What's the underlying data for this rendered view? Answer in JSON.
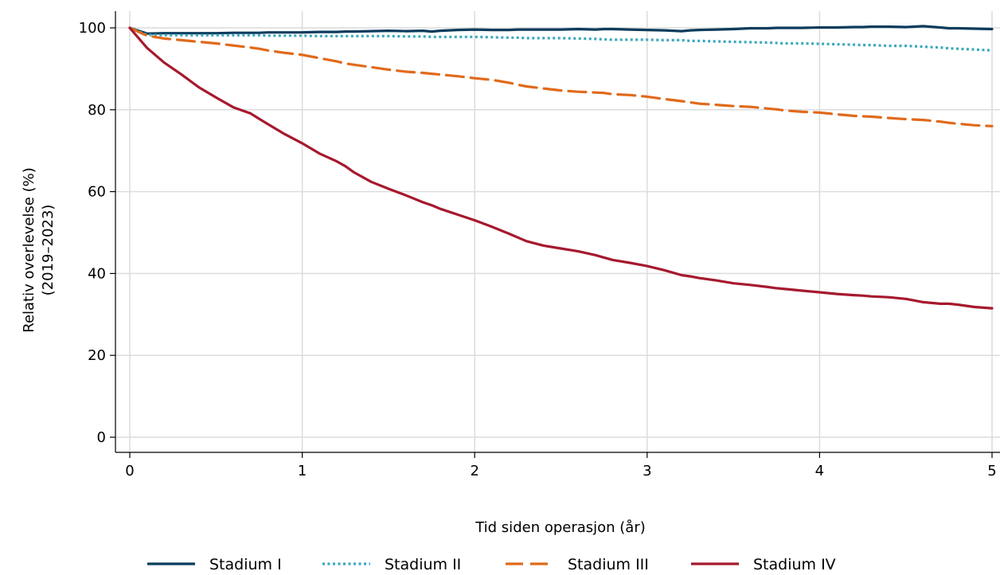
{
  "chart_data": {
    "type": "line",
    "title": "",
    "xlabel": "Tid siden operasjon (år)",
    "ylabel_lines": [
      "Relativ overlevelse (%)",
      "(2019–2023)"
    ],
    "xlim": [
      0,
      5
    ],
    "ylim": [
      0,
      100
    ],
    "x_ticks": [
      0,
      1,
      2,
      3,
      4,
      5
    ],
    "y_ticks": [
      0,
      20,
      40,
      60,
      80,
      100
    ],
    "grid": true,
    "legend_position": "bottom",
    "x": [
      0,
      0.1,
      0.2,
      0.3,
      0.4,
      0.5,
      0.6,
      0.7,
      0.75,
      0.8,
      0.9,
      1.0,
      1.1,
      1.2,
      1.25,
      1.3,
      1.4,
      1.5,
      1.6,
      1.7,
      1.75,
      1.8,
      1.9,
      2.0,
      2.1,
      2.2,
      2.25,
      2.3,
      2.4,
      2.5,
      2.6,
      2.7,
      2.75,
      2.8,
      2.9,
      3.0,
      3.1,
      3.2,
      3.25,
      3.3,
      3.4,
      3.5,
      3.6,
      3.7,
      3.75,
      3.8,
      3.9,
      4.0,
      4.1,
      4.2,
      4.25,
      4.3,
      4.4,
      4.5,
      4.6,
      4.7,
      4.75,
      4.8,
      4.9,
      5.0
    ],
    "series": [
      {
        "name": "Stadium I",
        "color": "#0b3c5d",
        "dash": "solid",
        "values": [
          100,
          98.6,
          98.7,
          98.7,
          98.7,
          98.7,
          98.8,
          98.8,
          98.8,
          98.9,
          98.9,
          98.9,
          99.0,
          99.0,
          99.1,
          99.1,
          99.2,
          99.3,
          99.2,
          99.3,
          99.1,
          99.3,
          99.5,
          99.6,
          99.5,
          99.5,
          99.6,
          99.6,
          99.6,
          99.6,
          99.7,
          99.6,
          99.7,
          99.7,
          99.6,
          99.5,
          99.4,
          99.2,
          99.4,
          99.5,
          99.6,
          99.7,
          99.9,
          99.9,
          100,
          100,
          100,
          100.1,
          100.1,
          100.2,
          100.2,
          100.3,
          100.3,
          100.2,
          100.4,
          100.1,
          99.9,
          99.9,
          99.8,
          99.7
        ]
      },
      {
        "name": "Stadium II",
        "color": "#3aa8bd",
        "dash": "dotted",
        "values": [
          100,
          98.3,
          98.2,
          98.2,
          98.2,
          98.2,
          98.2,
          98.2,
          98.2,
          98.1,
          98.1,
          98.1,
          98.0,
          98.0,
          98.0,
          98.0,
          98.0,
          98.0,
          97.9,
          97.9,
          97.8,
          97.8,
          97.8,
          97.8,
          97.7,
          97.6,
          97.6,
          97.5,
          97.5,
          97.5,
          97.4,
          97.3,
          97.2,
          97.1,
          97.1,
          97.1,
          97.0,
          97.0,
          96.8,
          96.8,
          96.7,
          96.6,
          96.5,
          96.4,
          96.3,
          96.2,
          96.2,
          96.1,
          96.0,
          95.9,
          95.8,
          95.8,
          95.6,
          95.6,
          95.4,
          95.2,
          95.0,
          94.9,
          94.7,
          94.5
        ]
      },
      {
        "name": "Stadium III",
        "color": "#e06a1b",
        "dash": "dashed",
        "values": [
          100,
          98.1,
          97.4,
          97.0,
          96.6,
          96.2,
          95.7,
          95.2,
          94.9,
          94.5,
          93.9,
          93.4,
          92.6,
          91.8,
          91.3,
          91.0,
          90.4,
          89.8,
          89.3,
          89.0,
          88.8,
          88.6,
          88.2,
          87.7,
          87.3,
          86.6,
          86.1,
          85.7,
          85.2,
          84.7,
          84.4,
          84.2,
          84.1,
          83.8,
          83.6,
          83.2,
          82.6,
          82.1,
          81.8,
          81.5,
          81.2,
          80.9,
          80.7,
          80.3,
          80.1,
          79.8,
          79.5,
          79.3,
          78.9,
          78.5,
          78.4,
          78.3,
          78.0,
          77.7,
          77.5,
          77.1,
          76.8,
          76.6,
          76.2,
          76.0
        ]
      },
      {
        "name": "Stadium IV",
        "color": "#a6192e",
        "dash": "solid",
        "values": [
          100,
          95.1,
          91.5,
          88.6,
          85.5,
          83.0,
          80.6,
          79.1,
          77.8,
          76.5,
          74.0,
          71.8,
          69.3,
          67.4,
          66.2,
          64.7,
          62.4,
          60.7,
          59.1,
          57.4,
          56.7,
          55.8,
          54.4,
          53.0,
          51.4,
          49.7,
          48.8,
          47.9,
          46.8,
          46.1,
          45.4,
          44.5,
          43.9,
          43.3,
          42.6,
          41.8,
          40.8,
          39.6,
          39.3,
          38.9,
          38.3,
          37.6,
          37.2,
          36.7,
          36.4,
          36.2,
          35.8,
          35.4,
          35.0,
          34.7,
          34.6,
          34.4,
          34.2,
          33.8,
          33.0,
          32.6,
          32.6,
          32.4,
          31.8,
          31.5
        ]
      }
    ]
  }
}
